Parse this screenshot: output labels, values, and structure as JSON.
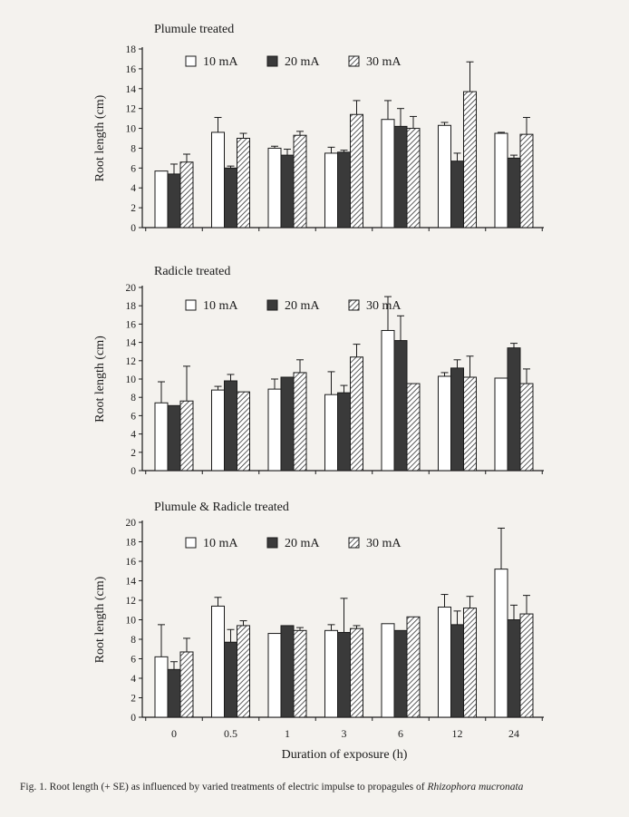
{
  "figure": {
    "caption_prefix": "Fig. 1. Root length (+ SE) as influenced by varied treatments of electric impulse to propagules of ",
    "caption_species": "Rhizophora mucronata",
    "xlabel": "Duration of exposure (h)"
  },
  "colors": {
    "open": "#ffffff",
    "filled": "#3a3a3a",
    "hatch": "#333333",
    "axis": "#1a1a1a"
  },
  "chart_data": [
    {
      "type": "bar",
      "title": "Plumule treated",
      "ylabel": "Root length (cm)",
      "ylim": [
        0,
        18
      ],
      "yticks": [
        0,
        2,
        4,
        6,
        8,
        10,
        12,
        14,
        16,
        18
      ],
      "categories": [
        "0",
        "0.5",
        "1",
        "3",
        "6",
        "12",
        "24"
      ],
      "series": [
        {
          "name": "10 mA",
          "style": "open",
          "values": [
            5.7,
            9.6,
            8.0,
            7.5,
            10.9,
            10.3,
            9.5
          ],
          "errors": [
            0.0,
            1.5,
            0.2,
            0.6,
            1.9,
            0.3,
            0.1
          ]
        },
        {
          "name": "20 mA",
          "style": "filled",
          "values": [
            5.4,
            6.0,
            7.3,
            7.6,
            10.2,
            6.7,
            7.0
          ],
          "errors": [
            1.0,
            0.2,
            0.6,
            0.2,
            1.8,
            0.8,
            0.3
          ]
        },
        {
          "name": "30 mA",
          "style": "hatched",
          "values": [
            6.6,
            9.0,
            9.3,
            11.4,
            10.0,
            13.7,
            9.4
          ],
          "errors": [
            0.8,
            0.5,
            0.4,
            1.4,
            1.2,
            3.0,
            1.7
          ]
        }
      ],
      "legend": "top"
    },
    {
      "type": "bar",
      "title": "Radicle treated",
      "ylabel": "Root length (cm)",
      "ylim": [
        0,
        20
      ],
      "yticks": [
        0,
        2,
        4,
        6,
        8,
        10,
        12,
        14,
        16,
        18,
        20
      ],
      "categories": [
        "0",
        "0.5",
        "1",
        "3",
        "6",
        "12",
        "24"
      ],
      "series": [
        {
          "name": "10 mA",
          "style": "open",
          "values": [
            7.4,
            8.8,
            8.9,
            8.3,
            15.3,
            10.3,
            10.1
          ],
          "errors": [
            2.3,
            0.4,
            1.1,
            2.5,
            3.7,
            0.4,
            0.0
          ]
        },
        {
          "name": "20 mA",
          "style": "filled",
          "values": [
            7.1,
            9.8,
            10.2,
            8.5,
            14.2,
            11.2,
            13.4
          ],
          "errors": [
            0.0,
            0.7,
            0.0,
            0.8,
            2.7,
            0.9,
            0.5
          ]
        },
        {
          "name": "30 mA",
          "style": "hatched",
          "values": [
            7.6,
            8.6,
            10.7,
            12.4,
            9.5,
            10.2,
            9.5
          ],
          "errors": [
            3.8,
            0.0,
            1.4,
            1.4,
            0.0,
            2.3,
            1.6
          ]
        }
      ],
      "legend": "top"
    },
    {
      "type": "bar",
      "title": "Plumule & Radicle treated",
      "ylabel": "Root length (cm)",
      "ylim": [
        0,
        20
      ],
      "yticks": [
        0,
        2,
        4,
        6,
        8,
        10,
        12,
        14,
        16,
        18,
        20
      ],
      "categories": [
        "0",
        "0.5",
        "1",
        "3",
        "6",
        "12",
        "24"
      ],
      "series": [
        {
          "name": "10 mA",
          "style": "open",
          "values": [
            6.2,
            11.4,
            8.6,
            8.9,
            9.6,
            11.3,
            15.2
          ],
          "errors": [
            3.3,
            0.9,
            0.0,
            0.6,
            0.0,
            1.3,
            4.2
          ]
        },
        {
          "name": "20 mA",
          "style": "filled",
          "values": [
            4.9,
            7.7,
            9.4,
            8.7,
            8.9,
            9.5,
            10.0
          ],
          "errors": [
            0.8,
            1.3,
            0.0,
            3.5,
            0.0,
            1.4,
            1.5
          ]
        },
        {
          "name": "30 mA",
          "style": "hatched",
          "values": [
            6.7,
            9.4,
            8.9,
            9.1,
            10.3,
            11.2,
            10.6
          ],
          "errors": [
            1.4,
            0.5,
            0.3,
            0.3,
            0.0,
            1.2,
            1.9
          ]
        }
      ],
      "legend": "top"
    }
  ]
}
